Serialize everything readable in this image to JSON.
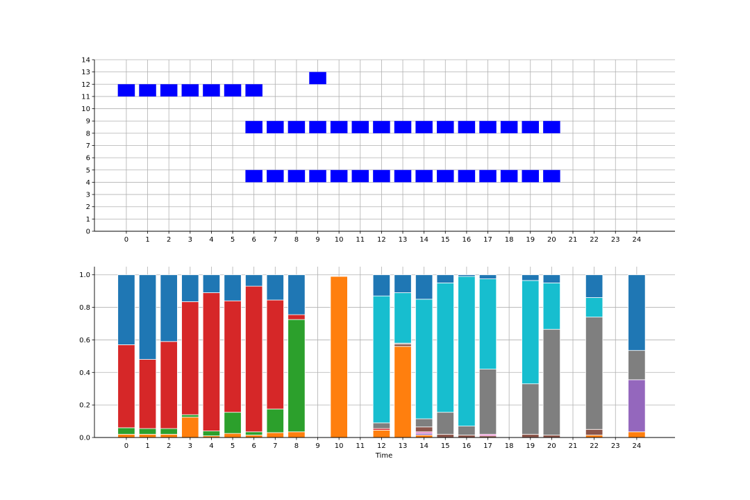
{
  "chart_data": [
    {
      "type": "bar",
      "title": "",
      "xlabel": "",
      "ylabel": "",
      "xlim": [
        -1.5,
        25.8
      ],
      "ylim": [
        0,
        14
      ],
      "x_ticks": [
        "0",
        "1",
        "2",
        "3",
        "4",
        "5",
        "6",
        "7",
        "8",
        "9",
        "10",
        "11",
        "12",
        "13",
        "14",
        "15",
        "16",
        "17",
        "18",
        "19",
        "20",
        "21",
        "22",
        "23",
        "24"
      ],
      "y_ticks": [
        "0",
        "1",
        "2",
        "3",
        "4",
        "5",
        "6",
        "7",
        "8",
        "9",
        "10",
        "11",
        "12",
        "13",
        "14"
      ],
      "grid": true,
      "color": "#0000ff",
      "cells": [
        {
          "t": 0,
          "y": 11
        },
        {
          "t": 1,
          "y": 11
        },
        {
          "t": 2,
          "y": 11
        },
        {
          "t": 3,
          "y": 11
        },
        {
          "t": 4,
          "y": 11
        },
        {
          "t": 5,
          "y": 11
        },
        {
          "t": 6,
          "y": 11
        },
        {
          "t": 9,
          "y": 12
        },
        {
          "t": 6,
          "y": 8
        },
        {
          "t": 7,
          "y": 8
        },
        {
          "t": 8,
          "y": 8
        },
        {
          "t": 9,
          "y": 8
        },
        {
          "t": 10,
          "y": 8
        },
        {
          "t": 11,
          "y": 8
        },
        {
          "t": 12,
          "y": 8
        },
        {
          "t": 13,
          "y": 8
        },
        {
          "t": 14,
          "y": 8
        },
        {
          "t": 15,
          "y": 8
        },
        {
          "t": 16,
          "y": 8
        },
        {
          "t": 17,
          "y": 8
        },
        {
          "t": 18,
          "y": 8
        },
        {
          "t": 19,
          "y": 8
        },
        {
          "t": 20,
          "y": 8
        },
        {
          "t": 6,
          "y": 4
        },
        {
          "t": 7,
          "y": 4
        },
        {
          "t": 8,
          "y": 4
        },
        {
          "t": 9,
          "y": 4
        },
        {
          "t": 10,
          "y": 4
        },
        {
          "t": 11,
          "y": 4
        },
        {
          "t": 12,
          "y": 4
        },
        {
          "t": 13,
          "y": 4
        },
        {
          "t": 14,
          "y": 4
        },
        {
          "t": 15,
          "y": 4
        },
        {
          "t": 16,
          "y": 4
        },
        {
          "t": 17,
          "y": 4
        },
        {
          "t": 18,
          "y": 4
        },
        {
          "t": 19,
          "y": 4
        },
        {
          "t": 20,
          "y": 4
        }
      ]
    },
    {
      "type": "bar",
      "stacked": true,
      "title": "",
      "xlabel": "Time",
      "ylabel": "",
      "xlim": [
        -1.5,
        25.8
      ],
      "ylim": [
        0,
        1.05
      ],
      "x_ticks": [
        "0",
        "1",
        "2",
        "3",
        "4",
        "5",
        "6",
        "7",
        "8",
        "9",
        "10",
        "11",
        "12",
        "13",
        "14",
        "15",
        "16",
        "17",
        "18",
        "19",
        "20",
        "21",
        "22",
        "23",
        "24"
      ],
      "y_ticks": [
        "0.0",
        "0.2",
        "0.4",
        "0.6",
        "0.8",
        "1.0"
      ],
      "grid": true,
      "bars": [
        {
          "t": 0,
          "segments": [
            {
              "color": "#ff7f0e",
              "value": 0.02
            },
            {
              "color": "#2ca02c",
              "value": 0.04
            },
            {
              "color": "#d62728",
              "value": 0.51
            },
            {
              "color": "#1f77b4",
              "value": 0.43
            }
          ]
        },
        {
          "t": 1,
          "segments": [
            {
              "color": "#ff7f0e",
              "value": 0.02
            },
            {
              "color": "#2ca02c",
              "value": 0.035
            },
            {
              "color": "#d62728",
              "value": 0.425
            },
            {
              "color": "#1f77b4",
              "value": 0.52
            }
          ]
        },
        {
          "t": 2,
          "segments": [
            {
              "color": "#ff7f0e",
              "value": 0.02
            },
            {
              "color": "#2ca02c",
              "value": 0.035
            },
            {
              "color": "#d62728",
              "value": 0.535
            },
            {
              "color": "#1f77b4",
              "value": 0.41
            }
          ]
        },
        {
          "t": 3,
          "segments": [
            {
              "color": "#ff7f0e",
              "value": 0.125
            },
            {
              "color": "#2ca02c",
              "value": 0.015
            },
            {
              "color": "#d62728",
              "value": 0.695
            },
            {
              "color": "#1f77b4",
              "value": 0.165
            }
          ]
        },
        {
          "t": 4,
          "segments": [
            {
              "color": "#ff7f0e",
              "value": 0.01
            },
            {
              "color": "#2ca02c",
              "value": 0.03
            },
            {
              "color": "#d62728",
              "value": 0.85
            },
            {
              "color": "#1f77b4",
              "value": 0.11
            }
          ]
        },
        {
          "t": 5,
          "segments": [
            {
              "color": "#ff7f0e",
              "value": 0.025
            },
            {
              "color": "#2ca02c",
              "value": 0.13
            },
            {
              "color": "#d62728",
              "value": 0.685
            },
            {
              "color": "#1f77b4",
              "value": 0.16
            }
          ]
        },
        {
          "t": 6,
          "segments": [
            {
              "color": "#ff7f0e",
              "value": 0.015
            },
            {
              "color": "#2ca02c",
              "value": 0.02
            },
            {
              "color": "#d62728",
              "value": 0.895
            },
            {
              "color": "#1f77b4",
              "value": 0.07
            }
          ]
        },
        {
          "t": 7,
          "segments": [
            {
              "color": "#ff7f0e",
              "value": 0.03
            },
            {
              "color": "#2ca02c",
              "value": 0.145
            },
            {
              "color": "#d62728",
              "value": 0.67
            },
            {
              "color": "#1f77b4",
              "value": 0.155
            }
          ]
        },
        {
          "t": 8,
          "segments": [
            {
              "color": "#ff7f0e",
              "value": 0.035
            },
            {
              "color": "#2ca02c",
              "value": 0.69
            },
            {
              "color": "#d62728",
              "value": 0.03
            },
            {
              "color": "#1f77b4",
              "value": 0.245
            }
          ]
        },
        {
          "t": 10,
          "segments": [
            {
              "color": "#ff7f0e",
              "value": 0.99
            }
          ]
        },
        {
          "t": 12,
          "segments": [
            {
              "color": "#ff7f0e",
              "value": 0.045
            },
            {
              "color": "#d62728",
              "value": 0.01
            },
            {
              "color": "#7f7f7f",
              "value": 0.035
            },
            {
              "color": "#17becf",
              "value": 0.78
            },
            {
              "color": "#1f77b4",
              "value": 0.13
            }
          ]
        },
        {
          "t": 13,
          "segments": [
            {
              "color": "#ff7f0e",
              "value": 0.56
            },
            {
              "color": "#8c564b",
              "value": 0.015
            },
            {
              "color": "#7f7f7f",
              "value": 0.005
            },
            {
              "color": "#17becf",
              "value": 0.31
            },
            {
              "color": "#1f77b4",
              "value": 0.11
            }
          ]
        },
        {
          "t": 14,
          "segments": [
            {
              "color": "#ff7f0e",
              "value": 0.015
            },
            {
              "color": "#9467bd",
              "value": 0.01
            },
            {
              "color": "#e377c2",
              "value": 0.01
            },
            {
              "color": "#8c564b",
              "value": 0.03
            },
            {
              "color": "#7f7f7f",
              "value": 0.05
            },
            {
              "color": "#17becf",
              "value": 0.735
            },
            {
              "color": "#1f77b4",
              "value": 0.15
            }
          ]
        },
        {
          "t": 15,
          "segments": [
            {
              "color": "#8c564b",
              "value": 0.02
            },
            {
              "color": "#7f7f7f",
              "value": 0.135
            },
            {
              "color": "#17becf",
              "value": 0.795
            },
            {
              "color": "#1f77b4",
              "value": 0.05
            }
          ]
        },
        {
          "t": 16,
          "segments": [
            {
              "color": "#8c564b",
              "value": 0.015
            },
            {
              "color": "#7f7f7f",
              "value": 0.055
            },
            {
              "color": "#17becf",
              "value": 0.92
            },
            {
              "color": "#1f77b4",
              "value": 0.01
            }
          ]
        },
        {
          "t": 17,
          "segments": [
            {
              "color": "#8c564b",
              "value": 0.01
            },
            {
              "color": "#e377c2",
              "value": 0.01
            },
            {
              "color": "#7f7f7f",
              "value": 0.4
            },
            {
              "color": "#17becf",
              "value": 0.555
            },
            {
              "color": "#1f77b4",
              "value": 0.025
            }
          ]
        },
        {
          "t": 19,
          "segments": [
            {
              "color": "#8c564b",
              "value": 0.02
            },
            {
              "color": "#7f7f7f",
              "value": 0.31
            },
            {
              "color": "#17becf",
              "value": 0.635
            },
            {
              "color": "#1f77b4",
              "value": 0.035
            }
          ]
        },
        {
          "t": 20,
          "segments": [
            {
              "color": "#8c564b",
              "value": 0.015
            },
            {
              "color": "#7f7f7f",
              "value": 0.65
            },
            {
              "color": "#17becf",
              "value": 0.285
            },
            {
              "color": "#1f77b4",
              "value": 0.05
            }
          ]
        },
        {
          "t": 22,
          "segments": [
            {
              "color": "#ff7f0e",
              "value": 0.015
            },
            {
              "color": "#8c564b",
              "value": 0.035
            },
            {
              "color": "#7f7f7f",
              "value": 0.69
            },
            {
              "color": "#17becf",
              "value": 0.12
            },
            {
              "color": "#1f77b4",
              "value": 0.14
            }
          ]
        },
        {
          "t": 24,
          "segments": [
            {
              "color": "#ff7f0e",
              "value": 0.035
            },
            {
              "color": "#9467bd",
              "value": 0.32
            },
            {
              "color": "#7f7f7f",
              "value": 0.18
            },
            {
              "color": "#1f77b4",
              "value": 0.465
            }
          ]
        }
      ]
    }
  ]
}
